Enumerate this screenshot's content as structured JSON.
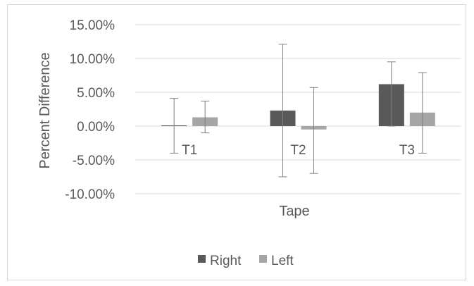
{
  "chart_data": {
    "type": "bar",
    "xlabel": "Tape",
    "ylabel": "Percent Difference",
    "ylim": [
      -10,
      15
    ],
    "yticks": [
      15,
      10,
      5,
      0,
      -5,
      -10
    ],
    "ytick_labels": [
      "15.00%",
      "10.00%",
      "5.00%",
      "0.00%",
      "-5.00%",
      "-10.00%"
    ],
    "categories": [
      "T1",
      "T2",
      "T3"
    ],
    "series": [
      {
        "name": "Right",
        "color": "#595959",
        "values": [
          0.1,
          2.3,
          6.2
        ],
        "error_low": [
          -4.0,
          -7.5,
          0.0
        ],
        "error_high": [
          4.1,
          12.1,
          9.5
        ]
      },
      {
        "name": "Left",
        "color": "#a6a6a6",
        "values": [
          1.3,
          -0.5,
          2.0
        ],
        "error_low": [
          -1.0,
          -7.0,
          -4.0
        ],
        "error_high": [
          3.7,
          5.7,
          7.9
        ]
      }
    ],
    "grid": true,
    "legend_position": "bottom"
  }
}
